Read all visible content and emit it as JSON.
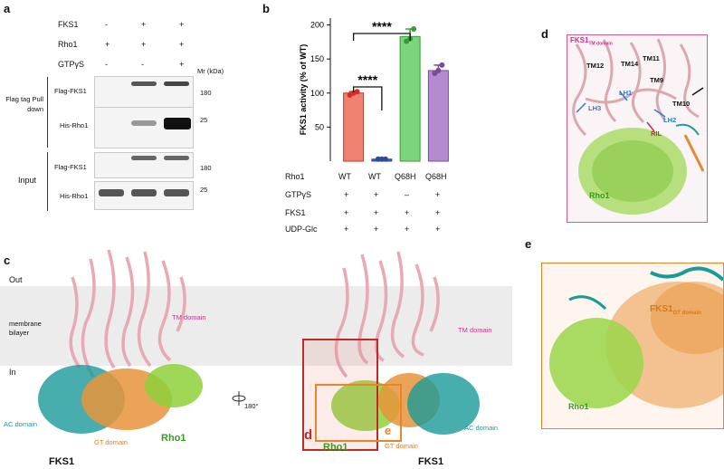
{
  "panel_a": {
    "label": "a",
    "conditions": [
      {
        "name": "FKS1",
        "values": [
          "-",
          "+",
          "+"
        ]
      },
      {
        "name": "Rho1",
        "values": [
          "+",
          "+",
          "+"
        ]
      },
      {
        "name": "GTPγS",
        "values": [
          "-",
          "-",
          "+"
        ]
      }
    ],
    "mw_header": "Mr (kDa)",
    "pulldown_label": "Flag tag Pull down",
    "input_label": "Input",
    "blots": [
      {
        "lane_label": "Flag-FKS1",
        "marker": "180"
      },
      {
        "lane_label": "His-Rho1",
        "marker": "25"
      },
      {
        "lane_label": "Flag-FKS1",
        "marker": "180"
      },
      {
        "lane_label": "His-Rho1",
        "marker": "25"
      }
    ]
  },
  "panel_b": {
    "label": "b",
    "significance": [
      "****",
      "****"
    ],
    "row_labels": [
      "Rho1",
      "GTPγS",
      "FKS1",
      "UDP-Glc"
    ],
    "table": [
      [
        "WT",
        "WT",
        "Q68H",
        "Q68H"
      ],
      [
        "+",
        "+",
        "–",
        "+"
      ],
      [
        "+",
        "+",
        "+",
        "+"
      ],
      [
        "+",
        "+",
        "+",
        "+"
      ]
    ]
  },
  "chart_data": {
    "type": "bar",
    "categories": [
      "WT",
      "WT",
      "Q68H",
      "Q68H"
    ],
    "values": [
      100,
      3,
      183,
      133
    ],
    "points": [
      [
        97,
        100,
        102
      ],
      [
        3,
        3,
        3
      ],
      [
        176,
        180,
        194
      ],
      [
        129,
        133,
        141
      ]
    ],
    "colors": [
      "#f08070",
      "#3a66c4",
      "#7cd47c",
      "#b48ad0"
    ],
    "edge_colors": [
      "#d0302a",
      "#2a4aa0",
      "#3a9a3a",
      "#7a4a9a"
    ],
    "ylabel": "FKS1 activity (% of WT)",
    "yticks": [
      50,
      100,
      150,
      200
    ],
    "ylim": [
      0,
      210
    ]
  },
  "panel_c": {
    "label": "c",
    "out_label": "Out",
    "membrane_label": "membrane bilayer",
    "in_label": "In",
    "left": {
      "tm": "TM domain",
      "ac": "AC domain",
      "gt": "GT domain",
      "rho": "Rho1",
      "title": "FKS1"
    },
    "right": {
      "tm": "TM domain",
      "ac": "AC domain",
      "gt": "GT domain",
      "rho": "Rho1",
      "title": "FKS1"
    },
    "rotation": "180°",
    "box_d": "d",
    "box_e": "e"
  },
  "panel_d": {
    "label": "d",
    "title": "FKS1",
    "title_sub": "TM domain",
    "labels": [
      "TM11",
      "TM12",
      "TM14",
      "TM9",
      "TM10",
      "LH1",
      "LH2",
      "LH3",
      "RIL"
    ],
    "rho": "Rho1"
  },
  "panel_e": {
    "label": "e",
    "fks": "FKS1",
    "fks_sub": "GT domain",
    "rho": "Rho1"
  }
}
